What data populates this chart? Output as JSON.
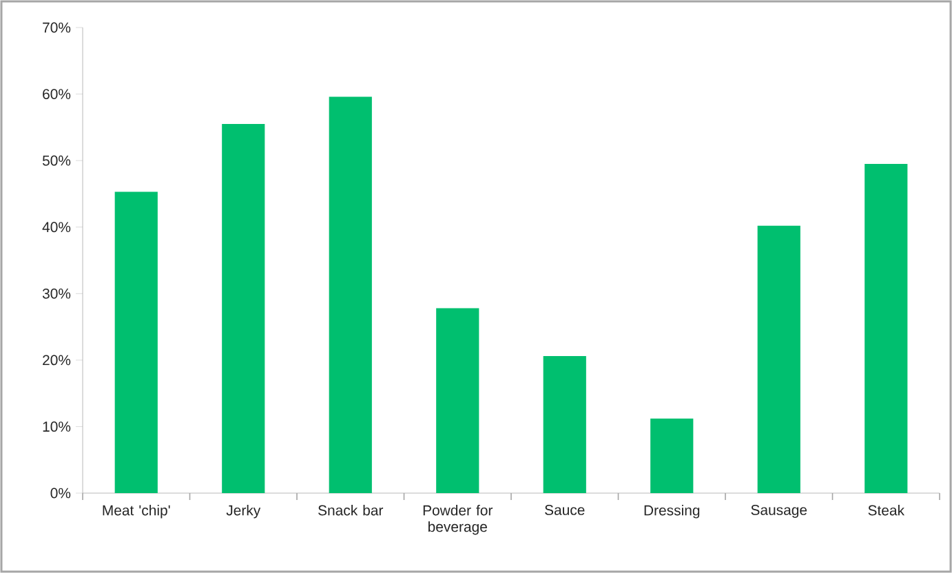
{
  "chart_data": {
    "type": "bar",
    "categories": [
      "Meat 'chip'",
      "Jerky",
      "Snack bar",
      "Powder for beverage",
      "Sauce",
      "Dressing",
      "Sausage",
      "Steak"
    ],
    "values": [
      45.3,
      55.5,
      59.6,
      27.8,
      20.6,
      11.2,
      40.2,
      49.5
    ],
    "color": "#00bf6f",
    "ylim": [
      0,
      70
    ],
    "yticks": [
      {
        "value": 0,
        "label": "0%"
      },
      {
        "value": 10,
        "label": "10%"
      },
      {
        "value": 20,
        "label": "20%"
      },
      {
        "value": 30,
        "label": "30%"
      },
      {
        "value": 40,
        "label": "40%"
      },
      {
        "value": 50,
        "label": "50%"
      },
      {
        "value": 60,
        "label": "60%"
      },
      {
        "value": 70,
        "label": "70%"
      }
    ],
    "tick_labels": "xy"
  }
}
